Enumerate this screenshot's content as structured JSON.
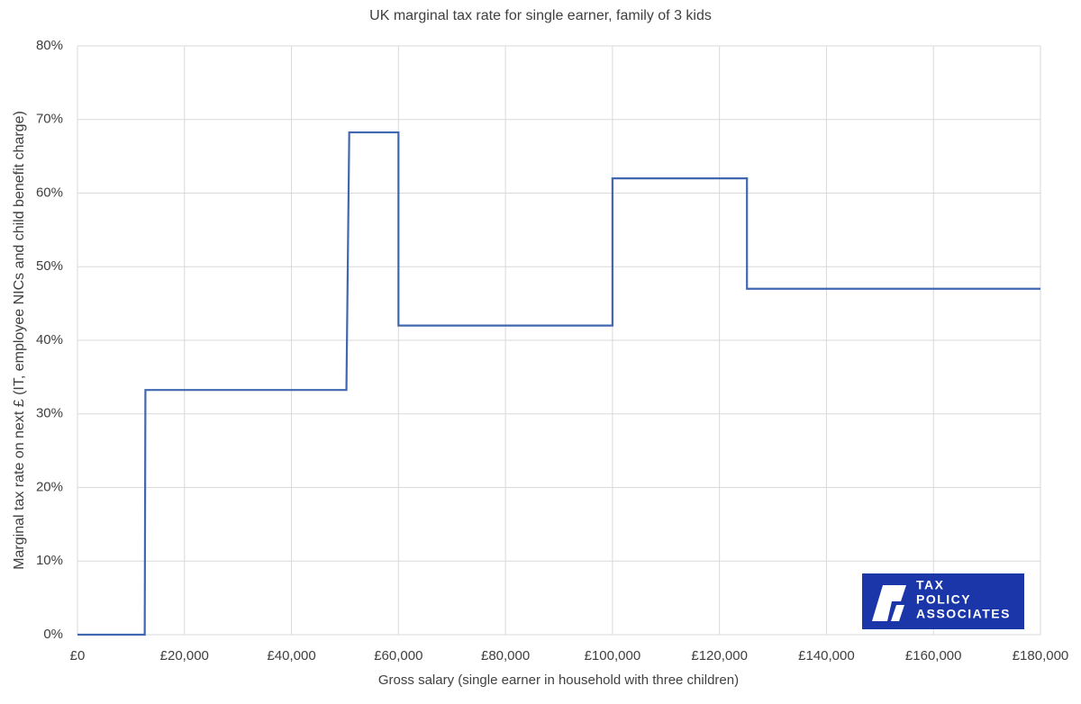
{
  "chart_data": {
    "type": "line",
    "title": "UK marginal tax rate for single earner, family of 3 kids",
    "x_label": "Gross salary (single earner in household with three children)",
    "y_label": "Marginal tax rate on next £ (IT, employee NICs and child benefit charge)",
    "x": [
      0,
      12570,
      12700,
      50270,
      50800,
      60000,
      60000,
      100000,
      100000,
      125140,
      125140,
      180000
    ],
    "series": [
      {
        "name": "Marginal tax rate",
        "color": "#4068b0",
        "values": [
          0,
          0,
          33.25,
          33.25,
          68.25,
          68.25,
          42,
          42,
          62,
          62,
          47,
          47
        ]
      }
    ],
    "xlim": [
      0,
      180000
    ],
    "xticks": [
      {
        "value": 0,
        "label": "£0"
      },
      {
        "value": 20000,
        "label": "£20,000"
      },
      {
        "value": 40000,
        "label": "£40,000"
      },
      {
        "value": 60000,
        "label": "£60,000"
      },
      {
        "value": 80000,
        "label": "£80,000"
      },
      {
        "value": 100000,
        "label": "£100,000"
      },
      {
        "value": 120000,
        "label": "£120,000"
      },
      {
        "value": 140000,
        "label": "£140,000"
      },
      {
        "value": 160000,
        "label": "£160,000"
      },
      {
        "value": 180000,
        "label": "£180,000"
      }
    ],
    "ylim": [
      0,
      80
    ],
    "yticks": [
      {
        "value": 0,
        "label": "0%"
      },
      {
        "value": 10,
        "label": "10%"
      },
      {
        "value": 20,
        "label": "20%"
      },
      {
        "value": 30,
        "label": "30%"
      },
      {
        "value": 40,
        "label": "40%"
      },
      {
        "value": 50,
        "label": "50%"
      },
      {
        "value": 60,
        "label": "60%"
      },
      {
        "value": 70,
        "label": "70%"
      },
      {
        "value": 80,
        "label": "80%"
      }
    ],
    "grid": true,
    "logo": [
      "TAX",
      "POLICY",
      "ASSOCIATES"
    ]
  }
}
